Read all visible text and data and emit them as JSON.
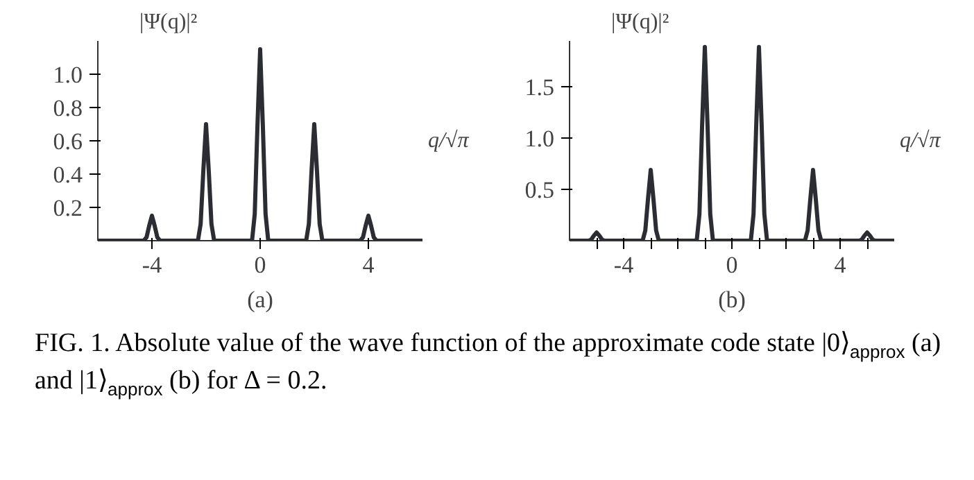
{
  "chart_data": [
    {
      "type": "line",
      "title": "(a)",
      "xlabel": "q/√π",
      "ylabel": "|Ψ(q)|²",
      "color": "#2b2d33",
      "grid": false,
      "marker": "none",
      "line_style": "solid",
      "x": [
        -6,
        -4.3,
        -4.2,
        -4.1,
        -4,
        -3.9,
        -3.8,
        -3.7,
        -2.3,
        -2.2,
        -2.1,
        -2,
        -1.9,
        -1.8,
        -1.7,
        -0.3,
        -0.2,
        -0.1,
        0,
        0.1,
        0.2,
        0.3,
        1.7,
        1.8,
        1.9,
        2,
        2.1,
        2.2,
        2.3,
        3.7,
        3.8,
        3.9,
        4,
        4.1,
        4.2,
        4.3,
        6
      ],
      "values": [
        0,
        0,
        0.02,
        0.09,
        0.15,
        0.09,
        0.02,
        0,
        0,
        0.1,
        0.42,
        0.7,
        0.42,
        0.1,
        0,
        0,
        0.16,
        0.69,
        1.15,
        0.69,
        0.16,
        0,
        0,
        0.1,
        0.42,
        0.7,
        0.42,
        0.1,
        0,
        0,
        0.02,
        0.09,
        0.15,
        0.09,
        0.02,
        0,
        0
      ],
      "xlim": [
        -6,
        6
      ],
      "ylim": [
        0,
        1.2
      ],
      "xticks": [
        -4,
        0,
        4
      ],
      "yticks": [
        0.2,
        0.4,
        0.6,
        0.8,
        {
          "value": 1,
          "label": "1.0"
        }
      ]
    },
    {
      "type": "line",
      "title": "(b)",
      "xlabel": "q/√π",
      "ylabel": "|Ψ(q)|²",
      "color": "#2b2d33",
      "grid": false,
      "marker": "none",
      "line_style": "solid",
      "x": [
        -6,
        -5.3,
        -5.2,
        -5.1,
        -5,
        -4.9,
        -4.8,
        -4.7,
        -3.3,
        -3.2,
        -3.1,
        -3,
        -2.9,
        -2.8,
        -2.7,
        -1.3,
        -1.2,
        -1.1,
        -1,
        -0.9,
        -0.8,
        -0.7,
        0.7,
        0.8,
        0.9,
        1,
        1.1,
        1.2,
        1.3,
        2.7,
        2.8,
        2.9,
        3,
        3.1,
        3.2,
        3.3,
        4.7,
        4.8,
        4.9,
        5,
        5.1,
        5.2,
        5.3,
        6
      ],
      "values": [
        0,
        0,
        0.01,
        0.05,
        0.08,
        0.05,
        0.01,
        0,
        0,
        0.1,
        0.41,
        0.69,
        0.41,
        0.1,
        0,
        0,
        0.26,
        1.13,
        1.89,
        1.13,
        0.26,
        0,
        0,
        0.26,
        1.13,
        1.89,
        1.13,
        0.26,
        0,
        0,
        0.1,
        0.41,
        0.69,
        0.41,
        0.1,
        0,
        0,
        0.01,
        0.05,
        0.08,
        0.05,
        0.01,
        0,
        0
      ],
      "xlim": [
        -6,
        6
      ],
      "ylim": [
        0,
        1.95
      ],
      "xticks": [
        {
          "value": -5,
          "label": null
        },
        -4,
        {
          "value": -3,
          "label": null
        },
        {
          "value": -2,
          "label": null
        },
        {
          "value": -1,
          "label": null
        },
        0,
        {
          "value": 1,
          "label": null
        },
        {
          "value": 2,
          "label": null
        },
        {
          "value": 3,
          "label": null
        },
        4,
        {
          "value": 5,
          "label": null
        }
      ],
      "yticks": [
        0.5,
        {
          "value": 1,
          "label": "1.0"
        },
        1.5
      ],
      "annotations": [
        "FIG. 1.  Absolute value of the wave function of the approximate code state |0⟩$_{approx}$ (a) and |1⟩$_{approx}$ (b) for Δ = 0.2."
      ]
    }
  ]
}
